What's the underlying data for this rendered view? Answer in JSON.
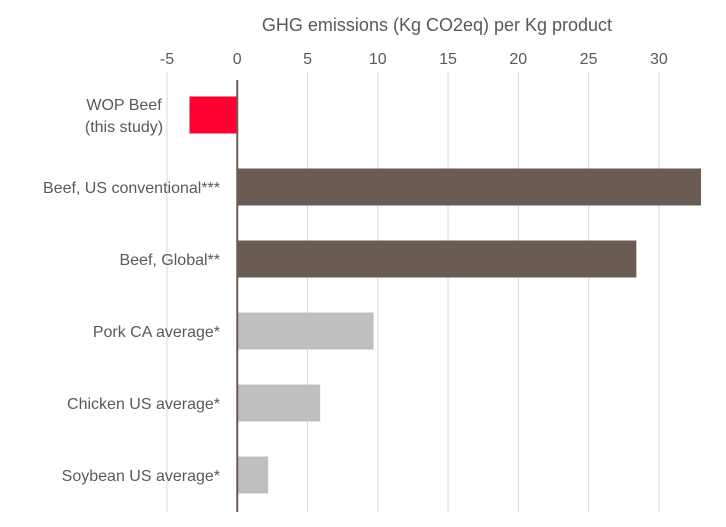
{
  "chart_data": {
    "type": "bar",
    "orientation": "horizontal",
    "title": "",
    "xlabel": "GHG emissions (Kg CO2eq) per Kg product",
    "ylabel": "",
    "x_axis_position": "top",
    "xlim": [
      -5,
      33
    ],
    "xticks": [
      -5,
      0,
      5,
      10,
      15,
      20,
      25,
      30
    ],
    "grid": true,
    "legend": "none",
    "categories": [
      [
        "WOP Beef",
        "(this study)"
      ],
      [
        "Beef, US conventional***"
      ],
      [
        "Beef, Global**"
      ],
      [
        "Pork CA average*"
      ],
      [
        "Chicken US average*"
      ],
      [
        "Soybean US average*"
      ]
    ],
    "values": [
      -3.4,
      33.0,
      28.4,
      9.7,
      5.9,
      2.2
    ],
    "colors": [
      "#ff0033",
      "#6b5b55",
      "#6b5b55",
      "#bfbfbf",
      "#bfbfbf",
      "#bfbfbf"
    ],
    "axis_color": "#6b5b55",
    "grid_color": "#d9d9d9",
    "text_color": "#595959"
  }
}
